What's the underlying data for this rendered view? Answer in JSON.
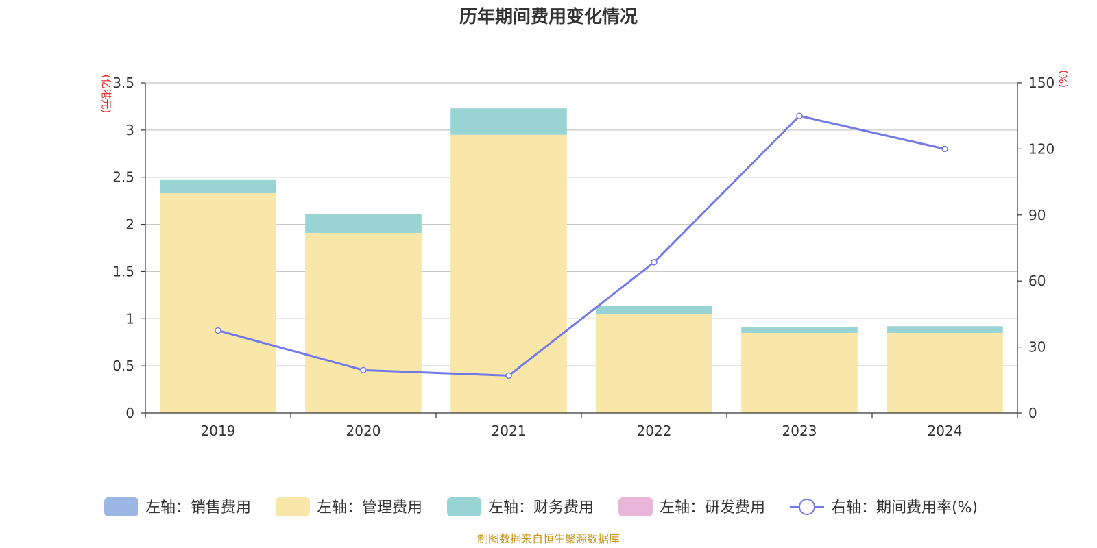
{
  "chart_data": {
    "type": "bar",
    "stacked": true,
    "title": "历年期间费用变化情况",
    "categories": [
      "2019",
      "2020",
      "2021",
      "2022",
      "2023",
      "2024"
    ],
    "left_axis": {
      "unit": "(亿港元)",
      "ylim": [
        0,
        3.5
      ],
      "ticks": [
        "0",
        "0.5",
        "1",
        "1.5",
        "2",
        "2.5",
        "3",
        "3.5"
      ]
    },
    "right_axis": {
      "unit": "(%)",
      "ylim": [
        0,
        150
      ],
      "ticks": [
        "0",
        "30",
        "60",
        "90",
        "120",
        "150"
      ]
    },
    "series": [
      {
        "name": "左轴：销售费用",
        "type": "bar",
        "axis": "left",
        "color": "#9bb6e2",
        "values": [
          0,
          0,
          0,
          0,
          0,
          0
        ]
      },
      {
        "name": "左轴：管理费用",
        "type": "bar",
        "axis": "left",
        "color": "#f8e7a8",
        "values": [
          2.33,
          1.91,
          2.95,
          1.05,
          0.85,
          0.85
        ]
      },
      {
        "name": "左轴：财务费用",
        "type": "bar",
        "axis": "left",
        "color": "#98d4d3",
        "values": [
          0.14,
          0.2,
          0.28,
          0.09,
          0.06,
          0.07
        ]
      },
      {
        "name": "左轴：研发费用",
        "type": "bar",
        "axis": "left",
        "color": "#e8b6d8",
        "values": [
          0,
          0,
          0,
          0,
          0,
          0
        ]
      },
      {
        "name": "右轴：期间费用率(%)",
        "type": "line",
        "axis": "right",
        "color": "#7479e8",
        "values": [
          37.5,
          19.5,
          17,
          68.5,
          135,
          120
        ]
      }
    ],
    "grid": true,
    "legend_position": "bottom"
  },
  "source_note": "制图数据来自恒生聚源数据库"
}
